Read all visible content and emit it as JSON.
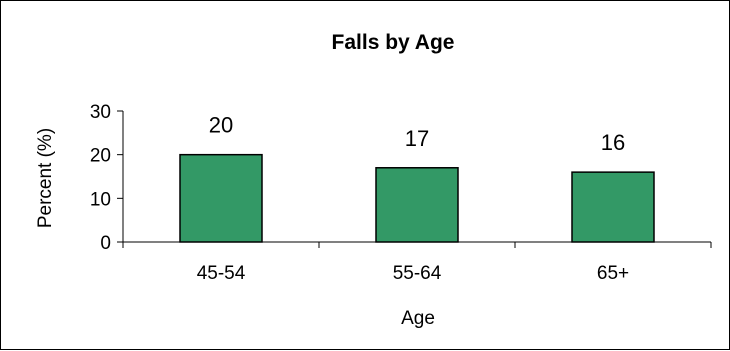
{
  "chart_data": {
    "type": "bar",
    "title": "Falls by Age",
    "xlabel": "Age",
    "ylabel": "Percent (%)",
    "categories": [
      "45-54",
      "55-64",
      "65+"
    ],
    "values": [
      20,
      17,
      16
    ],
    "ylim": [
      0,
      30
    ],
    "yticks": [
      0,
      10,
      20,
      30
    ],
    "bar_color": "#339966",
    "bar_edge_color": "#000000",
    "grid": false,
    "legend": "none"
  }
}
